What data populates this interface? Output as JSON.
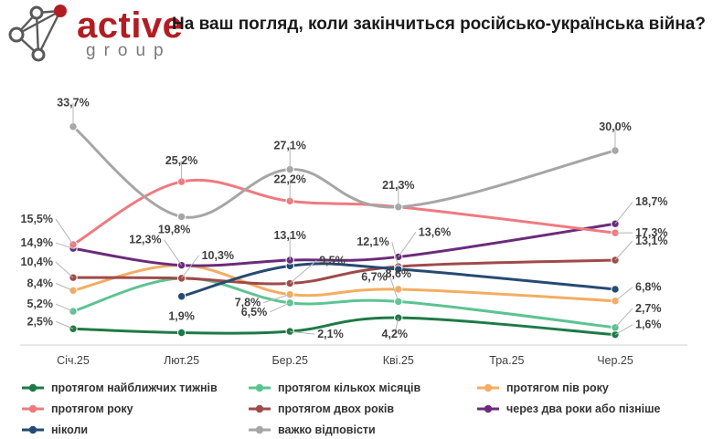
{
  "logo": {
    "word": "active",
    "sub": "group",
    "brand_color": "#b01e23",
    "mark_color": "#5a5a5a"
  },
  "chart_data": {
    "type": "line",
    "title": "На ваш погляд, коли закінчиться російсько-українська війна?",
    "categories": [
      "Січ.25",
      "Лют.25",
      "Бер.25",
      "Кві.25",
      "Тра.25",
      "Чер.25"
    ],
    "ylim": [
      0,
      40
    ],
    "grid": false,
    "legend_position": "bottom",
    "series": [
      {
        "name": "протягом найближчих тижнів",
        "color": "#1e7a45",
        "values": [
          2.5,
          1.9,
          2.1,
          4.2,
          null,
          1.6
        ],
        "labels": [
          "2,5%",
          "1,9%",
          "2,1%",
          "4,2%",
          null,
          "1,6%"
        ]
      },
      {
        "name": "протягом кількох місяців",
        "color": "#5cc393",
        "values": [
          5.2,
          10.3,
          6.5,
          6.7,
          null,
          2.7
        ],
        "labels": [
          "5,2%",
          "10,3%",
          "6,5%",
          "6,7%",
          null,
          "2,7%"
        ]
      },
      {
        "name": "протягом пів року",
        "color": "#f4ad62",
        "values": [
          8.4,
          12.3,
          7.8,
          8.6,
          null,
          6.8
        ],
        "labels": [
          "8,4%",
          "12,3%",
          "7,8%",
          "8,6%",
          null,
          "6,8%"
        ]
      },
      {
        "name": "протягом року",
        "color": "#ee7a80",
        "values": [
          15.5,
          25.2,
          22.2,
          21.3,
          null,
          17.3
        ],
        "labels": [
          "15,5%",
          "25,2%",
          "22,2%",
          null,
          null,
          "17,3%"
        ]
      },
      {
        "name": "протягом двох років",
        "color": "#a04a4a",
        "values": [
          10.4,
          10.3,
          9.5,
          12.1,
          null,
          13.1
        ],
        "labels": [
          "10,4%",
          null,
          "9,5%",
          "12,1%",
          null,
          "13,1%"
        ]
      },
      {
        "name": "через два роки або пізніше",
        "color": "#6b2b7a",
        "values": [
          14.9,
          12.3,
          13.1,
          13.6,
          null,
          18.7
        ],
        "labels": [
          "14,9%",
          null,
          "13,1%",
          "13,6%",
          null,
          "18,7%"
        ]
      },
      {
        "name": "ніколи",
        "color": "#264a72",
        "values": [
          null,
          7.5,
          12.2,
          11.7,
          null,
          8.6
        ],
        "labels": [
          null,
          null,
          null,
          null,
          null,
          null
        ]
      },
      {
        "name": "важко відповісти",
        "color": "#a6a6a6",
        "values": [
          33.7,
          19.8,
          27.1,
          21.3,
          null,
          30.0
        ],
        "labels": [
          "33,7%",
          "19,8%",
          "27,1%",
          "21,3%",
          null,
          "30,0%"
        ]
      }
    ]
  }
}
